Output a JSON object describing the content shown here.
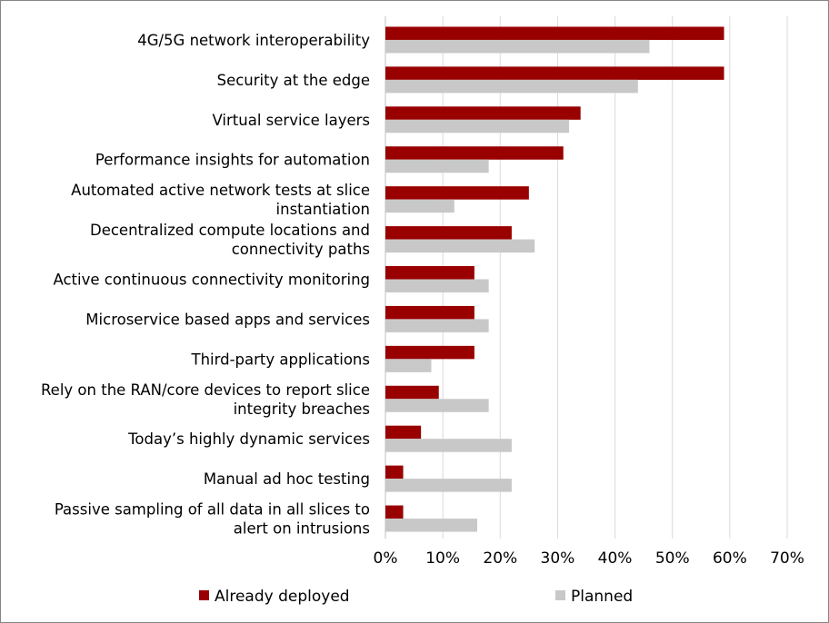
{
  "chart_data": {
    "type": "bar",
    "orientation": "horizontal",
    "title": "",
    "xlabel": "",
    "ylabel": "",
    "xlim": [
      0,
      70
    ],
    "x_ticks": [
      "0%",
      "10%",
      "20%",
      "30%",
      "40%",
      "50%",
      "60%",
      "70%"
    ],
    "x_tick_values": [
      0,
      10,
      20,
      30,
      40,
      50,
      60,
      70
    ],
    "grid": true,
    "legend_position": "bottom",
    "categories": [
      [
        "4G/5G network interoperability"
      ],
      [
        "Security at the edge"
      ],
      [
        "Virtual service layers"
      ],
      [
        "Performance insights for automation"
      ],
      [
        "Automated active network tests at slice",
        "instantiation"
      ],
      [
        "Decentralized compute locations and",
        "connectivity paths"
      ],
      [
        "Active continuous connectivity monitoring"
      ],
      [
        "Microservice based apps and services"
      ],
      [
        "Third-party applications"
      ],
      [
        "Rely on the RAN/core devices to report slice",
        "integrity breaches"
      ],
      [
        "Today’s highly dynamic services"
      ],
      [
        "Manual ad hoc testing"
      ],
      [
        "Passive sampling of all data in all slices to",
        "alert on intrusions"
      ]
    ],
    "series": [
      {
        "name": "Already deployed",
        "color": "#990000",
        "values": [
          59,
          59,
          34,
          31,
          25,
          22,
          15.5,
          15.5,
          15.5,
          9.3,
          6.2,
          3.1,
          3.1
        ]
      },
      {
        "name": "Planned",
        "color": "#C8C8C8",
        "values": [
          46,
          44,
          32,
          18,
          12,
          26,
          18,
          18,
          8,
          18,
          22,
          22,
          16
        ]
      }
    ]
  }
}
